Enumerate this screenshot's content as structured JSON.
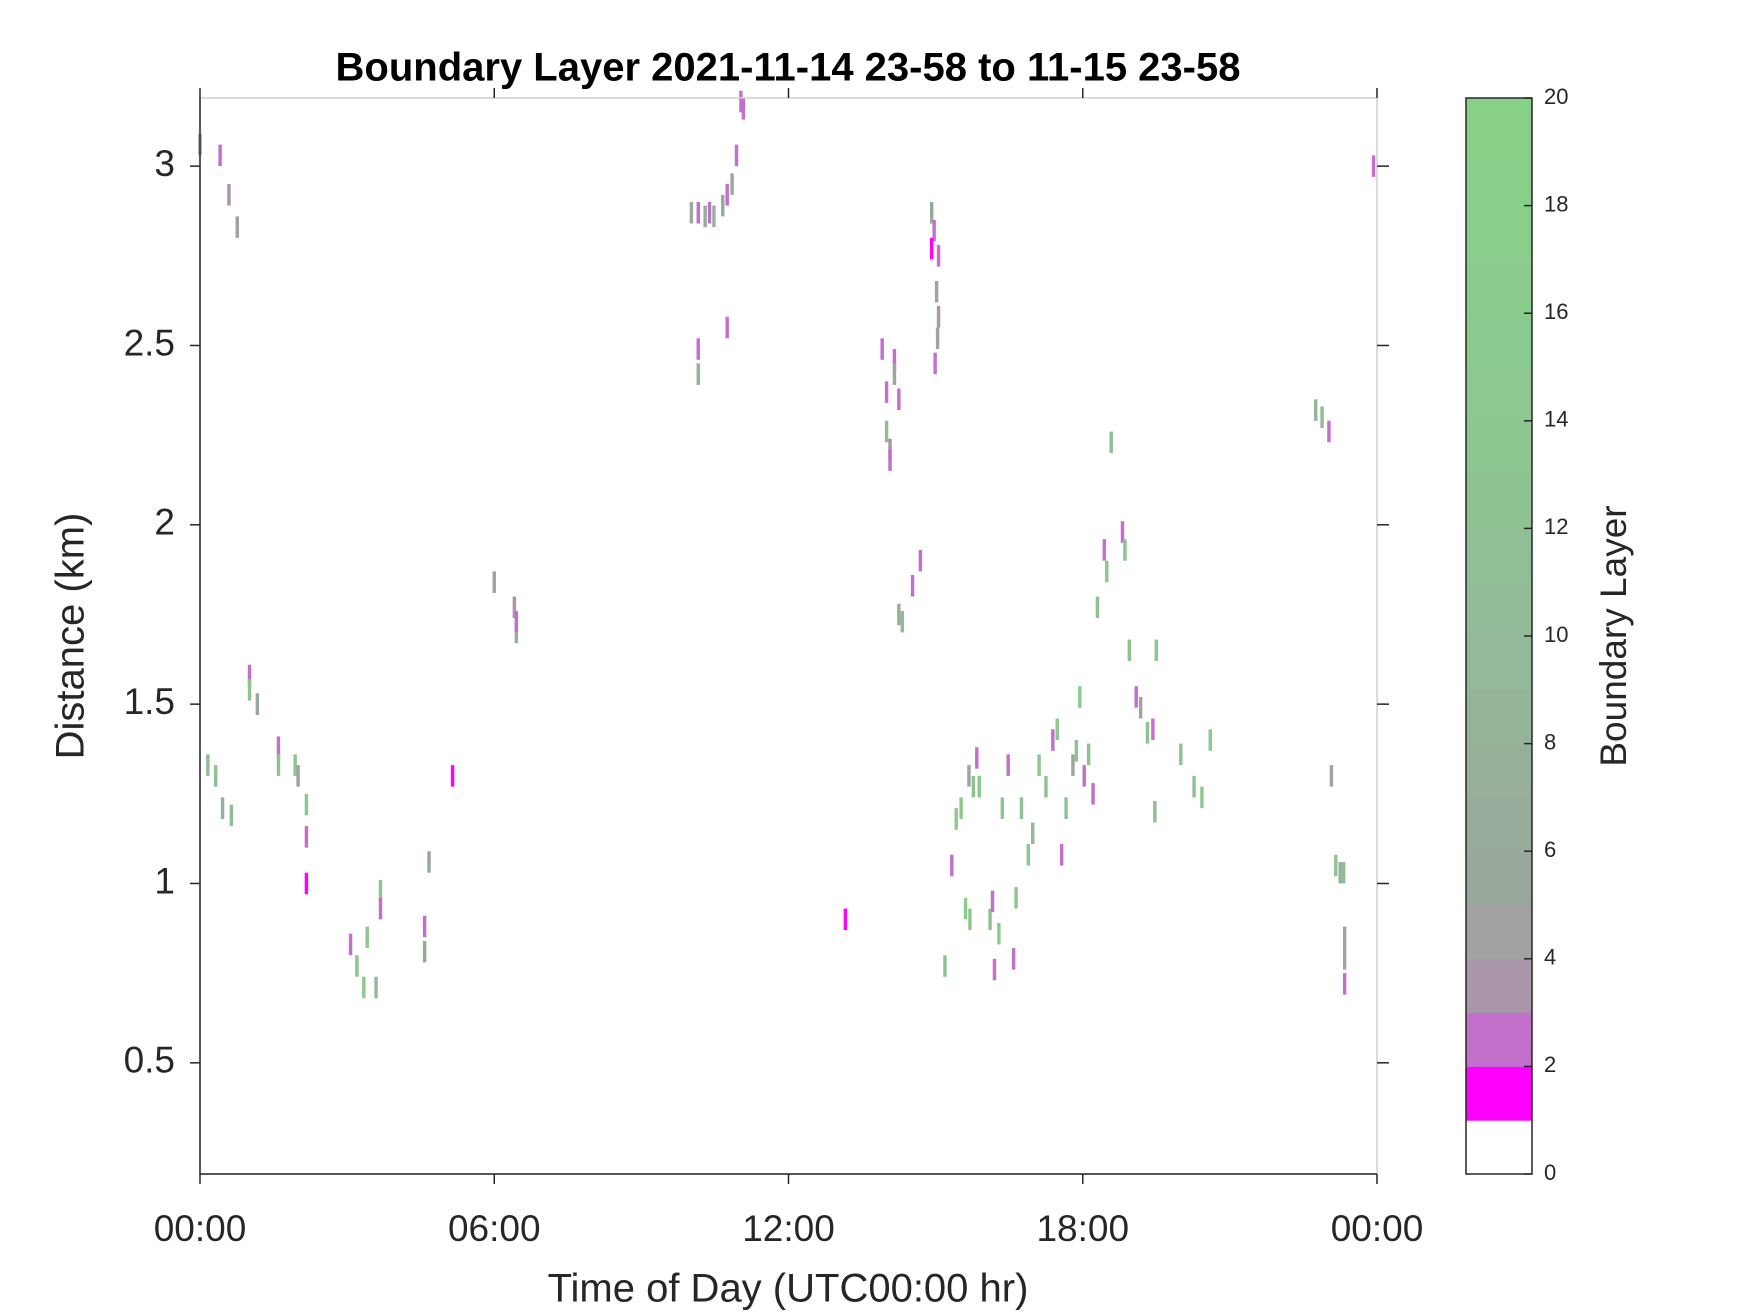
{
  "chart_data": {
    "type": "heatmap",
    "title": "Boundary Layer 2021-11-14 23-58 to 11-15 23-58",
    "xlabel": "Time of Day (UTC00:00 hr)",
    "ylabel": "Distance (km)",
    "colorbar_label": "Boundary Layer",
    "xlim": [
      0,
      24
    ],
    "xticks": [
      {
        "value": 0,
        "label": "00:00"
      },
      {
        "value": 6,
        "label": "06:00"
      },
      {
        "value": 12,
        "label": "12:00"
      },
      {
        "value": 18,
        "label": "18:00"
      },
      {
        "value": 24,
        "label": "00:00"
      }
    ],
    "ylim": [
      0.19,
      3.19
    ],
    "yticks": [
      0.5,
      1,
      1.5,
      2,
      2.5,
      3
    ],
    "clim": [
      0,
      20
    ],
    "cticks": [
      0,
      2,
      4,
      6,
      8,
      10,
      12,
      14,
      16,
      18,
      20
    ],
    "colormap": [
      "#ffffff",
      "#ff00ff",
      "#c36fcc",
      "#a996aa",
      "#a2a2a2",
      "#9aa89c",
      "#98ac9b",
      "#96b09a",
      "#94b599",
      "#93b998",
      "#92bc97",
      "#91bf95",
      "#8fc293",
      "#8dc591",
      "#8cc890",
      "#8bca8e",
      "#8acc8c",
      "#89ce8a",
      "#88cf89",
      "#88d088"
    ],
    "x": [
      0.0,
      0.41,
      0.59,
      0.76,
      0.16,
      0.32,
      0.46,
      0.64,
      1.01,
      1.01,
      1.17,
      1.6,
      1.6,
      1.94,
      2.0,
      2.17,
      2.17,
      2.17,
      3.07,
      3.2,
      3.41,
      3.34,
      3.59,
      3.68,
      3.68,
      4.58,
      4.58,
      4.67,
      5.15,
      6.0,
      6.41,
      6.45,
      6.45,
      10.16,
      10.16,
      10.02,
      10.16,
      10.3,
      10.39,
      10.48,
      10.66,
      10.75,
      10.85,
      10.94,
      11.03,
      11.08,
      10.75,
      13.16,
      13.91,
      14.0,
      14.16,
      14.16,
      14.25,
      14.0,
      14.07,
      14.07,
      14.25,
      14.32,
      14.53,
      14.69,
      14.92,
      14.97,
      14.92,
      15.06,
      15.02,
      15.06,
      15.04,
      14.99,
      15.19,
      15.33,
      15.42,
      15.52,
      15.61,
      15.7,
      15.68,
      15.77,
      15.84,
      15.89,
      16.11,
      16.16,
      16.2,
      16.29,
      16.36,
      16.48,
      16.59,
      16.64,
      16.75,
      16.89,
      16.98,
      17.11,
      17.25,
      17.39,
      17.48,
      17.57,
      17.66,
      17.8,
      17.87,
      17.94,
      18.03,
      18.12,
      18.21,
      18.3,
      18.44,
      18.49,
      18.58,
      18.81,
      18.86,
      18.95,
      19.09,
      19.18,
      19.32,
      19.43,
      19.47,
      19.5,
      20.0,
      20.27,
      20.43,
      20.6,
      22.75,
      22.88,
      23.02,
      23.07,
      23.16,
      23.25,
      23.32,
      23.34,
      23.34,
      23.34,
      23.93
    ],
    "y": [
      3.06,
      3.03,
      2.92,
      2.83,
      1.33,
      1.3,
      1.21,
      1.19,
      1.58,
      1.54,
      1.5,
      1.38,
      1.33,
      1.33,
      1.3,
      1.22,
      1.13,
      1.0,
      0.83,
      0.77,
      0.85,
      0.71,
      0.71,
      0.98,
      0.93,
      0.88,
      0.81,
      1.06,
      1.3,
      1.84,
      1.77,
      1.7,
      1.73,
      2.49,
      2.42,
      2.87,
      2.87,
      2.86,
      2.87,
      2.86,
      2.89,
      2.92,
      2.95,
      3.03,
      3.18,
      3.16,
      2.55,
      0.9,
      2.49,
      2.37,
      2.46,
      2.42,
      2.35,
      2.26,
      2.21,
      2.18,
      1.75,
      1.73,
      1.83,
      1.9,
      2.87,
      2.82,
      2.77,
      2.75,
      2.65,
      2.58,
      2.52,
      2.45,
      0.77,
      1.05,
      1.18,
      1.21,
      0.93,
      0.9,
      1.3,
      1.27,
      1.35,
      1.27,
      0.9,
      0.95,
      0.76,
      0.86,
      1.21,
      1.33,
      0.79,
      0.96,
      1.21,
      1.08,
      1.14,
      1.33,
      1.27,
      1.4,
      1.43,
      1.08,
      1.21,
      1.33,
      1.37,
      1.52,
      1.3,
      1.36,
      1.25,
      1.77,
      1.93,
      1.87,
      2.23,
      1.98,
      1.93,
      1.65,
      1.52,
      1.49,
      1.42,
      1.43,
      1.2,
      1.65,
      1.36,
      1.27,
      1.24,
      1.4,
      2.32,
      2.3,
      2.26,
      1.3,
      1.05,
      1.03,
      1.03,
      0.85,
      0.79,
      0.72,
      3.0
    ],
    "values": [
      5,
      2,
      3,
      4,
      10,
      12,
      7,
      10,
      2,
      12,
      5,
      2,
      12,
      14,
      4,
      14,
      2,
      1,
      2,
      12,
      14,
      14,
      10,
      12,
      2,
      2,
      5,
      5,
      1,
      4,
      3,
      7,
      2,
      2,
      8,
      6,
      2,
      6,
      2,
      8,
      5,
      2,
      6,
      2,
      2,
      2,
      2,
      1,
      2,
      2,
      2,
      5,
      2,
      10,
      3,
      2,
      7,
      10,
      2,
      2,
      5,
      2,
      1,
      2,
      4,
      3,
      4,
      2,
      12,
      2,
      14,
      14,
      16,
      14,
      4,
      12,
      2,
      14,
      12,
      2,
      2,
      16,
      14,
      2,
      2,
      14,
      12,
      14,
      10,
      14,
      12,
      2,
      14,
      2,
      12,
      4,
      12,
      14,
      2,
      12,
      2,
      12,
      2,
      14,
      12,
      2,
      12,
      12,
      2,
      4,
      12,
      2,
      10,
      14,
      12,
      12,
      14,
      14,
      8,
      10,
      2,
      5,
      12,
      7,
      10,
      4,
      4,
      2,
      2
    ]
  }
}
